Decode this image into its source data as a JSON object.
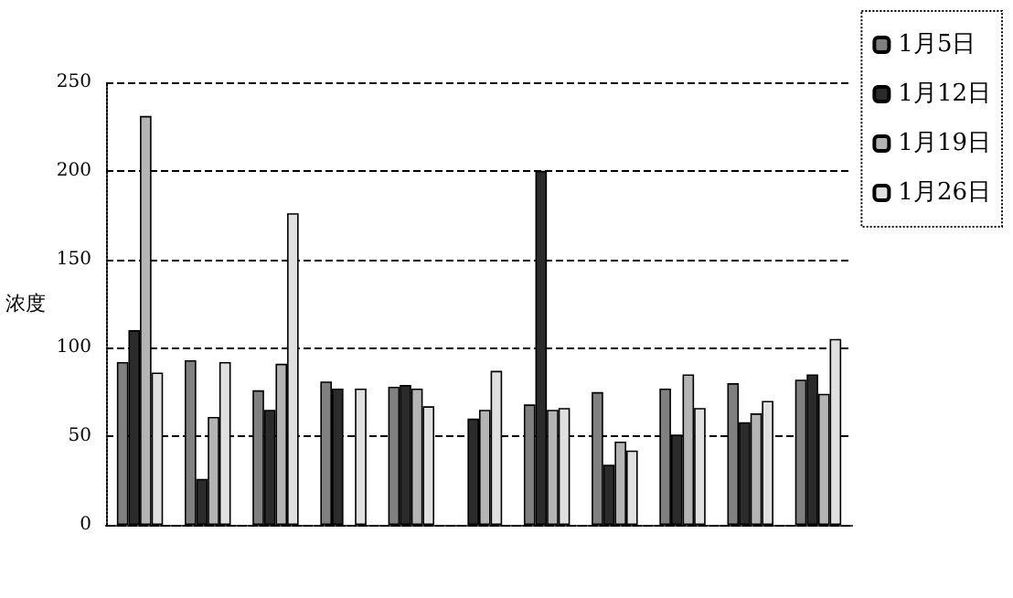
{
  "chart_data": {
    "type": "bar",
    "ylabel": "浓度",
    "categories": [
      null,
      null,
      null,
      null,
      null,
      null,
      null,
      null,
      null,
      null,
      null
    ],
    "series": [
      {
        "name": "1月5日",
        "color": "#808080",
        "values": [
          92,
          93,
          76,
          81,
          78,
          null,
          68,
          75,
          77,
          80,
          82
        ]
      },
      {
        "name": "1月12日",
        "color": "#2b2b2b",
        "values": [
          110,
          26,
          65,
          77,
          79,
          60,
          200,
          34,
          51,
          58,
          85
        ]
      },
      {
        "name": "1月19日",
        "color": "#b4b4b4",
        "values": [
          231,
          61,
          91,
          null,
          77,
          65,
          65,
          47,
          85,
          63,
          74
        ]
      },
      {
        "name": "1月26日",
        "color": "#e0e0e0",
        "values": [
          86,
          92,
          176,
          77,
          67,
          87,
          66,
          42,
          66,
          70,
          105
        ]
      }
    ],
    "ylim": [
      0,
      250
    ],
    "yticks": [
      0,
      50,
      100,
      150,
      200,
      250
    ],
    "grid": "y",
    "legend": "right"
  }
}
